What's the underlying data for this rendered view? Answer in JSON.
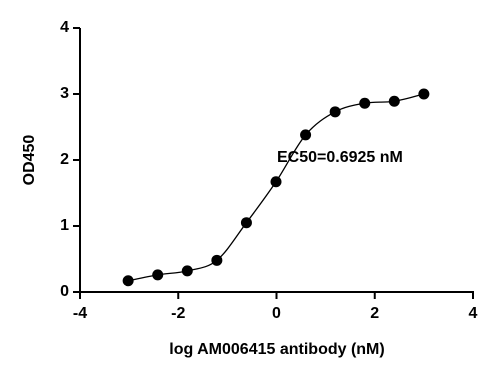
{
  "chart_data": {
    "type": "scatter",
    "x": [
      -3.02,
      -2.418,
      -1.816,
      -1.214,
      -0.612,
      -0.01,
      0.592,
      1.194,
      1.796,
      2.398,
      3.0
    ],
    "values": [
      0.17,
      0.26,
      0.32,
      0.48,
      1.05,
      1.67,
      2.38,
      2.73,
      2.86,
      2.89,
      3.0
    ],
    "color": "#000000",
    "xlabel": "log AM006415 antibody (nM)",
    "ylabel": "OD450",
    "annotation": "EC50=0.6925 nM",
    "xlim": [
      -4,
      4
    ],
    "xticks": [
      -4,
      -2,
      0,
      2,
      4
    ],
    "ylim": [
      0,
      4
    ],
    "yticks": [
      0,
      1,
      2,
      3,
      4
    ],
    "fit_line": true
  }
}
